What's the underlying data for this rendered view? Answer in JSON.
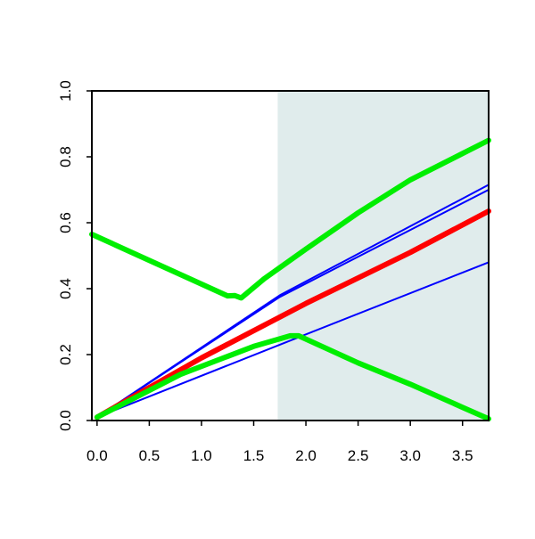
{
  "chart_data": {
    "type": "line",
    "title": "",
    "xlabel": "",
    "ylabel": "",
    "xlim": [
      -0.05,
      3.75
    ],
    "ylim": [
      0.0,
      1.0
    ],
    "x_ticks": [
      0.0,
      0.5,
      1.0,
      1.5,
      2.0,
      2.5,
      3.0,
      3.5
    ],
    "x_tick_labels": [
      "0.0",
      "0.5",
      "1.0",
      "1.5",
      "2.0",
      "2.5",
      "3.0",
      "3.5"
    ],
    "y_ticks": [
      0.0,
      0.2,
      0.4,
      0.6,
      0.8,
      1.0
    ],
    "y_tick_labels": [
      "0.0",
      "0.2",
      "0.4",
      "0.6",
      "0.8",
      "1.0"
    ],
    "grid": false,
    "legend": "none",
    "shaded_region": {
      "x_start": 1.73,
      "x_end": 3.75,
      "color": "#e0ecec"
    },
    "series": [
      {
        "color": "#0000ff",
        "width": "thin",
        "x": [
          0.0,
          1.75,
          3.75
        ],
        "y": [
          0.01,
          0.38,
          0.715
        ]
      },
      {
        "color": "#0000ff",
        "width": "thin",
        "x": [
          0.0,
          1.75,
          3.75
        ],
        "y": [
          0.01,
          0.375,
          0.7
        ]
      },
      {
        "color": "#0000ff",
        "width": "thin",
        "x": [
          0.0,
          1.75,
          3.75
        ],
        "y": [
          0.01,
          0.23,
          0.48
        ]
      },
      {
        "color": "#ff0000",
        "width": "thick",
        "x": [
          0.0,
          1.0,
          2.0,
          3.0,
          3.75
        ],
        "y": [
          0.01,
          0.19,
          0.355,
          0.51,
          0.635
        ]
      },
      {
        "color": "#00ee00",
        "width": "thick",
        "x": [
          -0.05,
          1.25,
          1.32,
          1.38,
          1.6,
          2.0,
          2.5,
          3.0,
          3.5,
          3.75
        ],
        "y": [
          0.565,
          0.378,
          0.379,
          0.372,
          0.43,
          0.52,
          0.63,
          0.73,
          0.81,
          0.85
        ]
      },
      {
        "color": "#00ee00",
        "width": "thick",
        "x": [
          0.0,
          0.8,
          1.5,
          1.85,
          1.93,
          2.5,
          3.0,
          3.5,
          3.75
        ],
        "y": [
          0.01,
          0.14,
          0.225,
          0.257,
          0.257,
          0.175,
          0.11,
          0.04,
          0.005
        ]
      }
    ]
  }
}
